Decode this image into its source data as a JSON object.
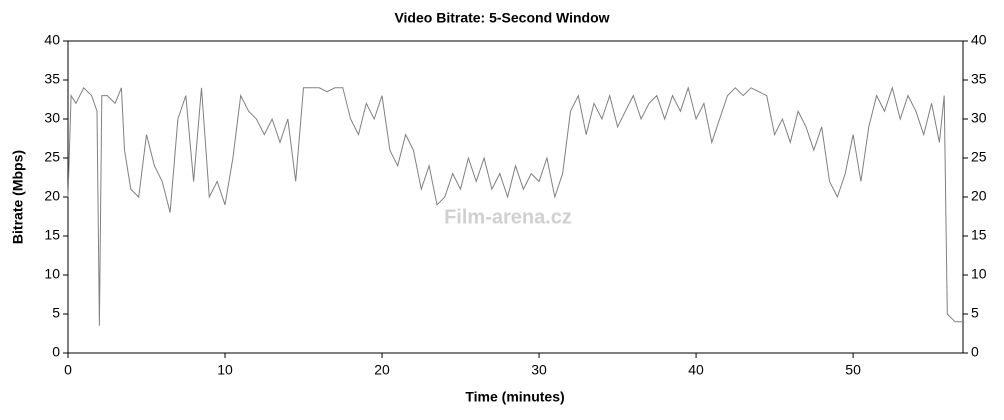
{
  "chart_data": {
    "type": "line",
    "title": "Video Bitrate: 5-Second Window",
    "xlabel": "Time (minutes)",
    "ylabel": "Bitrate (Mbps)",
    "watermark": "Film-arena.cz",
    "xlim": [
      0,
      57
    ],
    "xticks": [
      0,
      10,
      20,
      30,
      40,
      50
    ],
    "ylim": [
      0,
      40
    ],
    "yticks": [
      0,
      5,
      10,
      15,
      20,
      25,
      30,
      35,
      40
    ],
    "y2lim": [
      0,
      40
    ],
    "y2ticks": [
      0,
      5,
      10,
      15,
      20,
      25,
      30,
      35,
      40
    ],
    "series": [
      {
        "name": "Video Bitrate",
        "color": "#808080",
        "x": [
          0,
          0.2,
          0.5,
          1,
          1.5,
          1.85,
          2,
          2.15,
          2.5,
          3,
          3.4,
          3.6,
          4,
          4.5,
          5,
          5.5,
          6,
          6.5,
          7,
          7.5,
          8,
          8.5,
          9,
          9.5,
          10,
          10.5,
          11,
          11.5,
          12,
          12.5,
          13,
          13.5,
          14,
          14.5,
          15,
          15.5,
          16,
          16.5,
          17,
          17.5,
          18,
          18.5,
          19,
          19.5,
          20,
          20.5,
          21,
          21.5,
          22,
          22.5,
          23,
          23.5,
          24,
          24.5,
          25,
          25.5,
          26,
          26.5,
          27,
          27.5,
          28,
          28.5,
          29,
          29.5,
          30,
          30.5,
          31,
          31.5,
          32,
          32.5,
          33,
          33.5,
          34,
          34.5,
          35,
          35.5,
          36,
          36.5,
          37,
          37.5,
          38,
          38.5,
          39,
          39.5,
          40,
          40.5,
          41,
          41.5,
          42,
          42.5,
          43,
          43.5,
          44,
          44.5,
          45,
          45.5,
          46,
          46.5,
          47,
          47.5,
          48,
          48.5,
          49,
          49.5,
          50,
          50.5,
          51,
          51.5,
          52,
          52.5,
          53,
          53.5,
          54,
          54.5,
          55,
          55.5,
          55.8,
          56,
          56.5,
          57
        ],
        "values": [
          20,
          33,
          32,
          34,
          33,
          31,
          3.5,
          33,
          33,
          32,
          34,
          26,
          21,
          20,
          28,
          24,
          22,
          18,
          30,
          33,
          22,
          34,
          20,
          22,
          19,
          25,
          33,
          31,
          30,
          28,
          30,
          27,
          30,
          22,
          34,
          34,
          34,
          33.5,
          34,
          34,
          30,
          28,
          32,
          30,
          33,
          26,
          24,
          28,
          26,
          21,
          24,
          19,
          20,
          23,
          21,
          25,
          22,
          25,
          21,
          23,
          20,
          24,
          21,
          23,
          22,
          25,
          20,
          23,
          31,
          33,
          28,
          32,
          30,
          33,
          29,
          31,
          33,
          30,
          32,
          33,
          30,
          33,
          31,
          34,
          30,
          32,
          27,
          30,
          33,
          34,
          33,
          34,
          33.5,
          33,
          28,
          30,
          27,
          31,
          29,
          26,
          29,
          22,
          20,
          23,
          28,
          22,
          29,
          33,
          31,
          34,
          30,
          33,
          31,
          28,
          32,
          27,
          33,
          5,
          4,
          4
        ]
      }
    ]
  }
}
